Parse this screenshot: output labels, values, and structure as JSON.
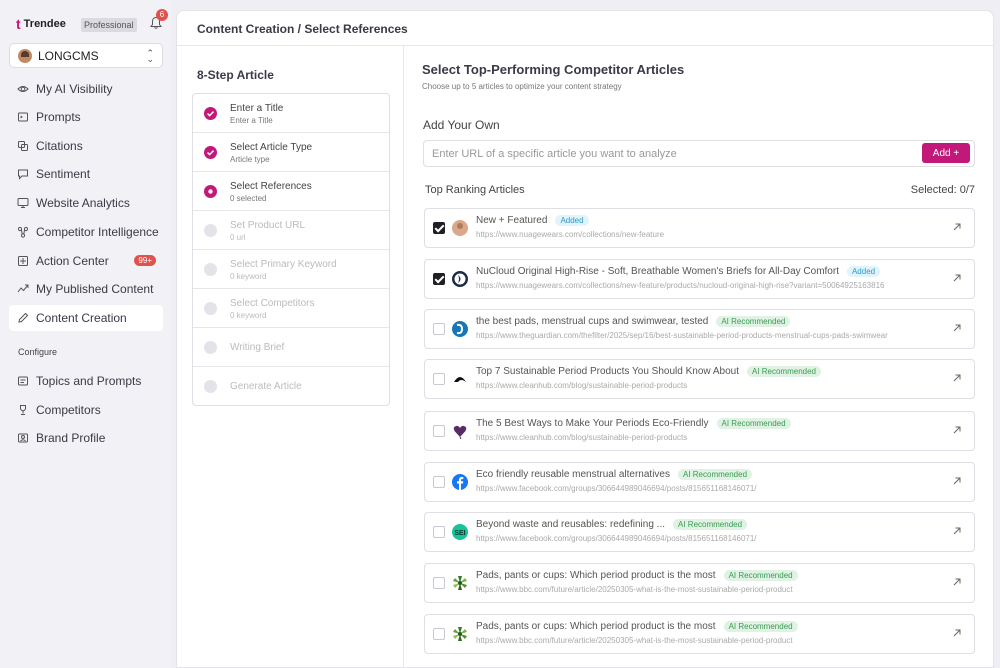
{
  "brand": {
    "name": "Trendee",
    "logo_glyph": "t",
    "plan": "Professional"
  },
  "notifications": {
    "count": "6"
  },
  "workspace": {
    "name": "LONGCMS"
  },
  "nav": {
    "items": [
      {
        "label": "My AI Visibility",
        "icon": "eye-icon"
      },
      {
        "label": "Prompts",
        "icon": "prompt-icon"
      },
      {
        "label": "Citations",
        "icon": "citation-icon"
      },
      {
        "label": "Sentiment",
        "icon": "sentiment-icon"
      },
      {
        "label": "Website Analytics",
        "icon": "monitor-icon"
      },
      {
        "label": "Competitor Intelligence",
        "icon": "network-icon"
      },
      {
        "label": "Action Center",
        "icon": "action-icon",
        "badge": "99+"
      },
      {
        "label": "My Published Content",
        "icon": "published-icon"
      },
      {
        "label": "Content Creation",
        "icon": "pen-icon",
        "active": true
      }
    ],
    "configure_label": "Configure",
    "configure_items": [
      {
        "label": "Topics and Prompts",
        "icon": "topics-icon"
      },
      {
        "label": "Competitors",
        "icon": "trophy-icon"
      },
      {
        "label": "Brand Profile",
        "icon": "profile-icon"
      }
    ]
  },
  "breadcrumb": "Content Creation / Select References",
  "steps": {
    "title": "8-Step Article",
    "items": [
      {
        "title": "Enter a Title",
        "sub": "Enter a Title",
        "state": "done"
      },
      {
        "title": "Select Article Type",
        "sub": "Article type",
        "state": "done"
      },
      {
        "title": "Select References",
        "sub": "0 selected",
        "state": "current"
      },
      {
        "title": "Set Product URL",
        "sub": "0 url",
        "state": "inactive"
      },
      {
        "title": "Select Primary Keyword",
        "sub": "0 keyword",
        "state": "inactive"
      },
      {
        "title": "Select Competitors",
        "sub": "0 keyword",
        "state": "inactive"
      },
      {
        "title": "Writing Brief",
        "sub": "",
        "state": "inactive"
      },
      {
        "title": "Generate Article",
        "sub": "",
        "state": "inactive"
      }
    ]
  },
  "references": {
    "title": "Select Top-Performing Competitor Articles",
    "subtitle": "Choose up to 5 articles to optimize your content strategy",
    "own_label": "Add Your Own",
    "url_placeholder": "Enter URL of a specific article you want to analyze",
    "add_button": "Add +",
    "top_label": "Top Ranking Articles",
    "selected_count": "Selected: 0/7",
    "articles": [
      {
        "title": "New + Featured",
        "url": "https://www.nuagewears.com/collections/new-feature",
        "tag": "Added",
        "checked": true,
        "favicon": "nuage-avatar-icon"
      },
      {
        "title": "NuCloud Original High-Rise - Soft, Breathable Women's Briefs for All-Day Comfort",
        "url": "https://www.nuagewears.com/collections/new-feature/products/nucloud-original-high-rise?variant=50064925163816",
        "tag": "Added",
        "checked": true,
        "favicon": "nuage-logo-icon"
      },
      {
        "title": "the best pads, menstrual cups and swimwear, tested",
        "url": "https://www.theguardian.com/thefilter/2025/sep/16/best-sustainable-period-products-menstrual-cups-pads-swimwear",
        "tag": "AI Recommended",
        "checked": false,
        "favicon": "guardian-icon"
      },
      {
        "title": "Top 7 Sustainable Period Products You Should Know About",
        "url": "https://www.cleanhub.com/blog/sustainable-period-products",
        "tag": "AI Recommended",
        "checked": false,
        "favicon": "cleanhub-icon"
      },
      {
        "title": "The 5 Best Ways to Make Your Periods Eco-Friendly",
        "url": "https://www.cleanhub.com/blog/sustainable-period-products",
        "tag": "AI Recommended",
        "checked": false,
        "favicon": "heart-icon"
      },
      {
        "title": "Eco friendly reusable menstrual alternatives",
        "url": "https://www.facebook.com/groups/306644989046694/posts/815651168146071/",
        "tag": "AI Recommended",
        "checked": false,
        "favicon": "facebook-icon"
      },
      {
        "title": "Beyond waste and reusables: redefining ...",
        "url": "https://www.facebook.com/groups/306644989046694/posts/815651168146071/",
        "tag": "AI Recommended",
        "checked": false,
        "favicon": "sei-icon",
        "favicon_text": "SEI"
      },
      {
        "title": "Pads, pants or cups: Which period product is the most",
        "url": "https://www.bbc.com/future/article/20250305-what-is-the-most-sustainable-period-product",
        "tag": "AI Recommended",
        "checked": false,
        "favicon": "bbc-icon"
      },
      {
        "title": "Pads, pants or cups: Which period product is the most",
        "url": "https://www.bbc.com/future/article/20250305-what-is-the-most-sustainable-period-product",
        "tag": "AI Recommended",
        "checked": false,
        "favicon": "bbc-icon"
      }
    ]
  },
  "colors": {
    "accent": "#c2187a",
    "badge": "#e0524d",
    "added_tag": "#2f9ac9",
    "ai_tag": "#3b9b53"
  }
}
